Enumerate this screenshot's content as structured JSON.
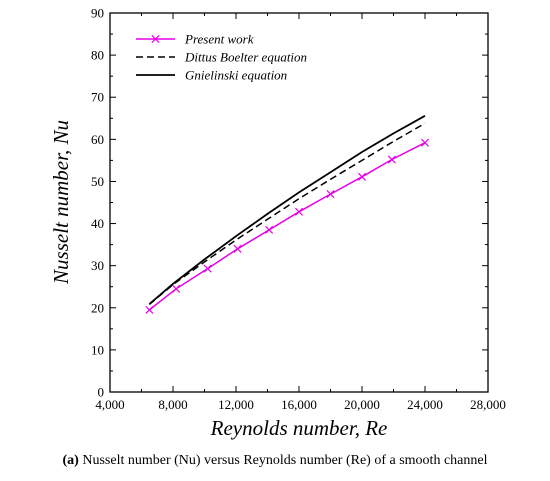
{
  "chart_data": {
    "type": "line",
    "xlabel": "Reynolds number, Re",
    "ylabel": "Nusselt number, Nu",
    "xlim": [
      4000,
      28000
    ],
    "ylim": [
      0,
      90
    ],
    "x_ticks": [
      "4,000",
      "8,000",
      "12,000",
      "16,000",
      "20,000",
      "24,000",
      "28,000"
    ],
    "y_ticks": [
      "0",
      "10",
      "20",
      "30",
      "40",
      "50",
      "60",
      "70",
      "80",
      "90"
    ],
    "legend_position": "top-left",
    "series": [
      {
        "name": "Present work",
        "color": "#e600e6",
        "style": "solid-with-x-markers",
        "x": [
          6500,
          8200,
          10200,
          12100,
          14100,
          16000,
          18000,
          20000,
          21900,
          24000
        ],
        "y": [
          19.5,
          24.5,
          29.3,
          34.0,
          38.5,
          42.8,
          47.0,
          51.1,
          55.2,
          59.2
        ]
      },
      {
        "name": "Dittus Boelter equation",
        "color": "#000000",
        "style": "dashed",
        "x": [
          6500,
          8000,
          10000,
          12000,
          14000,
          16000,
          18000,
          20000,
          22000,
          24000
        ],
        "y": [
          20.8,
          25.5,
          30.9,
          36.1,
          41.0,
          45.9,
          50.5,
          55.0,
          59.5,
          63.8
        ]
      },
      {
        "name": "Gnielinski equation",
        "color": "#000000",
        "style": "solid",
        "x": [
          6500,
          8000,
          10000,
          12000,
          14000,
          16000,
          18000,
          20000,
          22000,
          24000
        ],
        "y": [
          20.9,
          25.7,
          31.5,
          37.0,
          42.3,
          47.4,
          52.2,
          57.0,
          61.4,
          65.6
        ]
      }
    ]
  },
  "caption": {
    "label": "(a)",
    "text": " Nusselt number (Nu) versus Reynolds number (Re) of a smooth channel"
  }
}
